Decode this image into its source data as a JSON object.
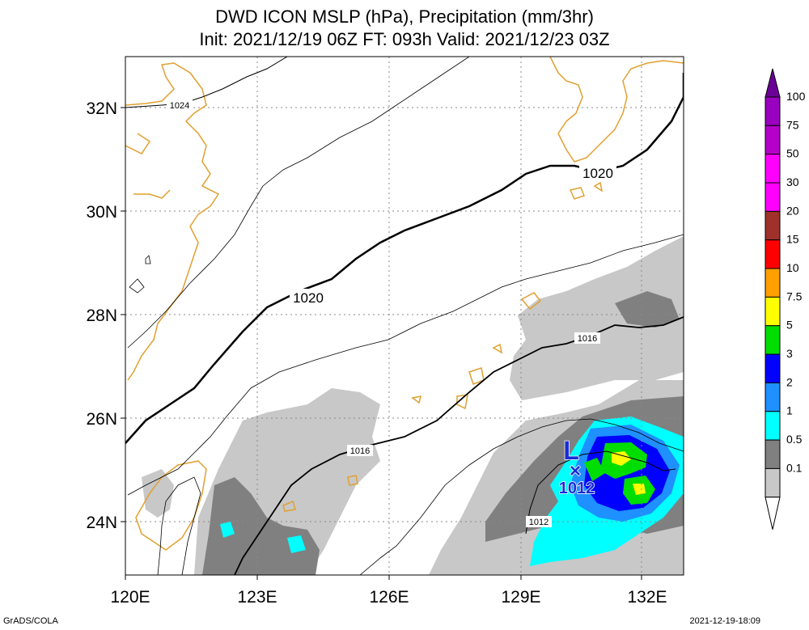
{
  "title_line1": "DWD ICON MSLP (hPa), Precipitation (mm/3hr)",
  "title_line2": "Init: 2021/12/19 06Z  FT: 093h  Valid: 2021/12/23 03Z",
  "lat_labels": [
    "32N",
    "30N",
    "28N",
    "26N",
    "24N"
  ],
  "lon_labels": [
    "120E",
    "123E",
    "126E",
    "129E",
    "132E"
  ],
  "colorbar": {
    "labels": [
      "100",
      "75",
      "50",
      "30",
      "20",
      "15",
      "10",
      "7.5",
      "5",
      "3",
      "2",
      "1",
      "0.5",
      "0.1"
    ],
    "colors": [
      "#9a00bf",
      "#b400c8",
      "#ff00ff",
      "#ff00ff",
      "#a0302a",
      "#ff0000",
      "#ffa000",
      "#ffff00",
      "#00dd00",
      "#0000ff",
      "#1e90ff",
      "#00ffff",
      "#808080",
      "#c8c8c8"
    ]
  },
  "isobar_labels": {
    "i1024": "1024",
    "i1020a": "1020",
    "i1020b": "1020",
    "i1016a": "1016",
    "i1016b": "1016",
    "i1012": "1012"
  },
  "low_center": {
    "symbol": "L",
    "marker": "×",
    "pressure": "1012"
  },
  "footer_left": "GrADS/COLA",
  "footer_right": "2021-12-19-18:09"
}
